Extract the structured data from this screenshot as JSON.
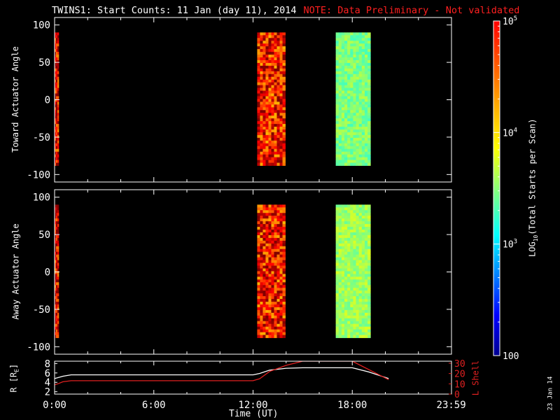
{
  "title": "TWINS1: Start Counts: 11 Jan (day  11), 2014",
  "note": "NOTE: Data Preliminary - Not validated",
  "date_stamp": "23 Jan 14",
  "colors": {
    "background": "#000000",
    "axes": "#ffffff",
    "note": "#ff2020",
    "r_line": "#ffffff",
    "lshell_line": "#e02020"
  },
  "chart_data": [
    {
      "type": "heatmap",
      "ylabel": "Toward Actuator Angle",
      "ylim": [
        -110,
        110
      ],
      "yticks": [
        -100,
        -50,
        0,
        50,
        100
      ],
      "xlim": [
        0,
        24
      ],
      "value_unit": "log10 counts",
      "blocks": [
        {
          "t_start": 0.0,
          "t_end": 0.25,
          "angle_range": [
            -88,
            90
          ],
          "log_value": 4.7
        },
        {
          "t_start": 12.25,
          "t_end": 13.95,
          "angle_range": [
            -88,
            90
          ],
          "log_value": 4.6
        },
        {
          "t_start": 17.0,
          "t_end": 19.1,
          "angle_range": [
            -88,
            90
          ],
          "log_value": 3.5
        }
      ]
    },
    {
      "type": "heatmap",
      "ylabel": "Away Actuator Angle",
      "ylim": [
        -110,
        110
      ],
      "yticks": [
        -100,
        -50,
        0,
        50,
        100
      ],
      "xlim": [
        0,
        24
      ],
      "value_unit": "log10 counts",
      "blocks": [
        {
          "t_start": 0.0,
          "t_end": 0.25,
          "angle_range": [
            -88,
            90
          ],
          "log_value": 4.7
        },
        {
          "t_start": 12.25,
          "t_end": 13.95,
          "angle_range": [
            -88,
            90
          ],
          "log_value": 4.6
        },
        {
          "t_start": 17.0,
          "t_end": 19.1,
          "angle_range": [
            -88,
            90
          ],
          "log_value": 3.6
        }
      ]
    },
    {
      "type": "line",
      "ylabel_left": "R [R",
      "ylabel_left_sub": "E",
      "ylabel_left_close": "]",
      "ylabel_right": "L Shell",
      "xlabel": "Time (UT)",
      "xlim": [
        0,
        24
      ],
      "xticks": [
        0,
        6,
        12,
        18,
        23.983
      ],
      "xtick_labels": [
        "0:00",
        "6:00",
        "12:00",
        "18:00",
        "23:59"
      ],
      "ylim_left": [
        1.5,
        8.5
      ],
      "yticks_left": [
        2,
        4,
        6,
        8
      ],
      "ylim_right": [
        0,
        32
      ],
      "yticks_right": [
        0,
        10,
        20,
        30
      ],
      "series": [
        {
          "axis": "left",
          "color": "#ffffff",
          "x": [
            0,
            0.2,
            0.5,
            1,
            3,
            6,
            9,
            12,
            12.4,
            13,
            14,
            15,
            16,
            17,
            18,
            19,
            20.2
          ],
          "y": [
            4.8,
            5.0,
            5.3,
            5.6,
            5.6,
            5.6,
            5.6,
            5.6,
            5.9,
            6.6,
            7.0,
            7.1,
            7.1,
            7.1,
            7.1,
            6.2,
            4.8
          ]
        },
        {
          "axis": "right",
          "color": "#e02020",
          "x": [
            0,
            0.2,
            0.5,
            1,
            3,
            6,
            9,
            12,
            12.4,
            13,
            14,
            15,
            16,
            17.9,
            18,
            20.2
          ],
          "y": [
            9,
            10,
            12,
            13,
            13,
            13,
            13,
            13,
            15,
            22,
            28,
            32,
            32,
            32,
            32,
            14
          ]
        }
      ]
    }
  ],
  "colorbar": {
    "label_pre": "LOG",
    "label_sub": "10",
    "label_post": "(Total Starts per Scan)",
    "range": [
      2,
      5
    ],
    "major_ticks": [
      {
        "value": 5,
        "label": "10",
        "exp": "5"
      },
      {
        "value": 4,
        "label": "10",
        "exp": "4"
      },
      {
        "value": 3,
        "label": "10",
        "exp": "3"
      },
      {
        "value": 2,
        "label": "100",
        "exp": ""
      }
    ]
  }
}
